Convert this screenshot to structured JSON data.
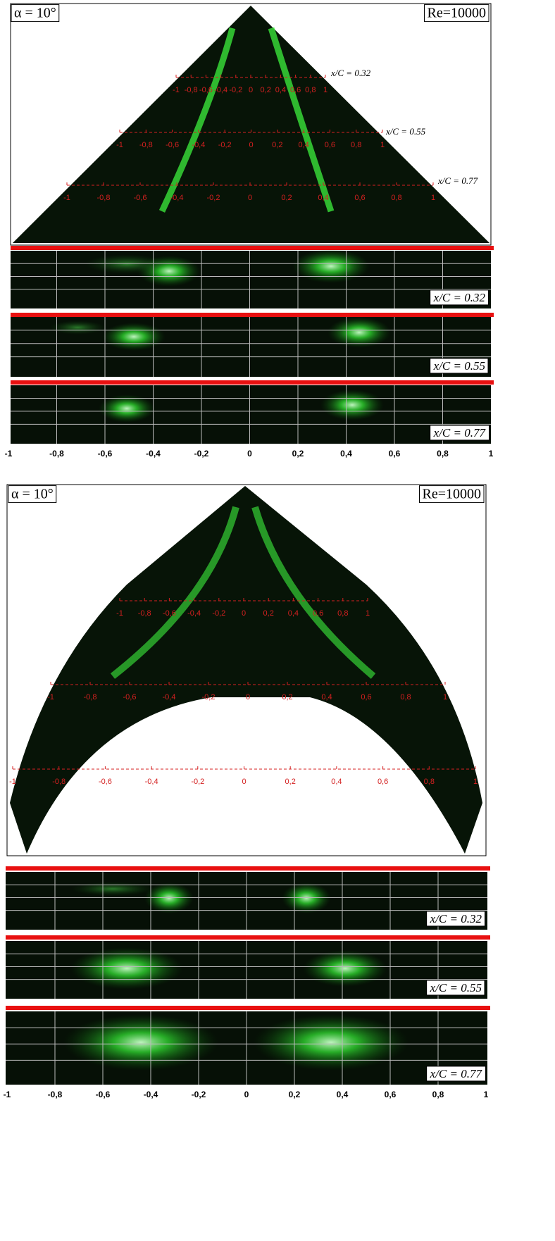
{
  "ticks": [
    "-1",
    "-0,8",
    "-0,6",
    "-0,4",
    "-0,2",
    "0",
    "0,2",
    "0,4",
    "0,6",
    "0,8",
    "1"
  ],
  "panels": [
    {
      "alpha": "α = 10°",
      "re": "Re=10000",
      "stations": [
        "x/C = 0.32",
        "x/C = 0.55",
        "x/C = 0.77"
      ],
      "sections": [
        "x/C = 0.32",
        "x/C = 0.55",
        "x/C = 0.77"
      ]
    },
    {
      "alpha": "α = 10°",
      "re": "Re=10000",
      "sections": [
        "x/C = 0.32",
        "x/C = 0.55",
        "x/C = 0.77"
      ]
    }
  ]
}
